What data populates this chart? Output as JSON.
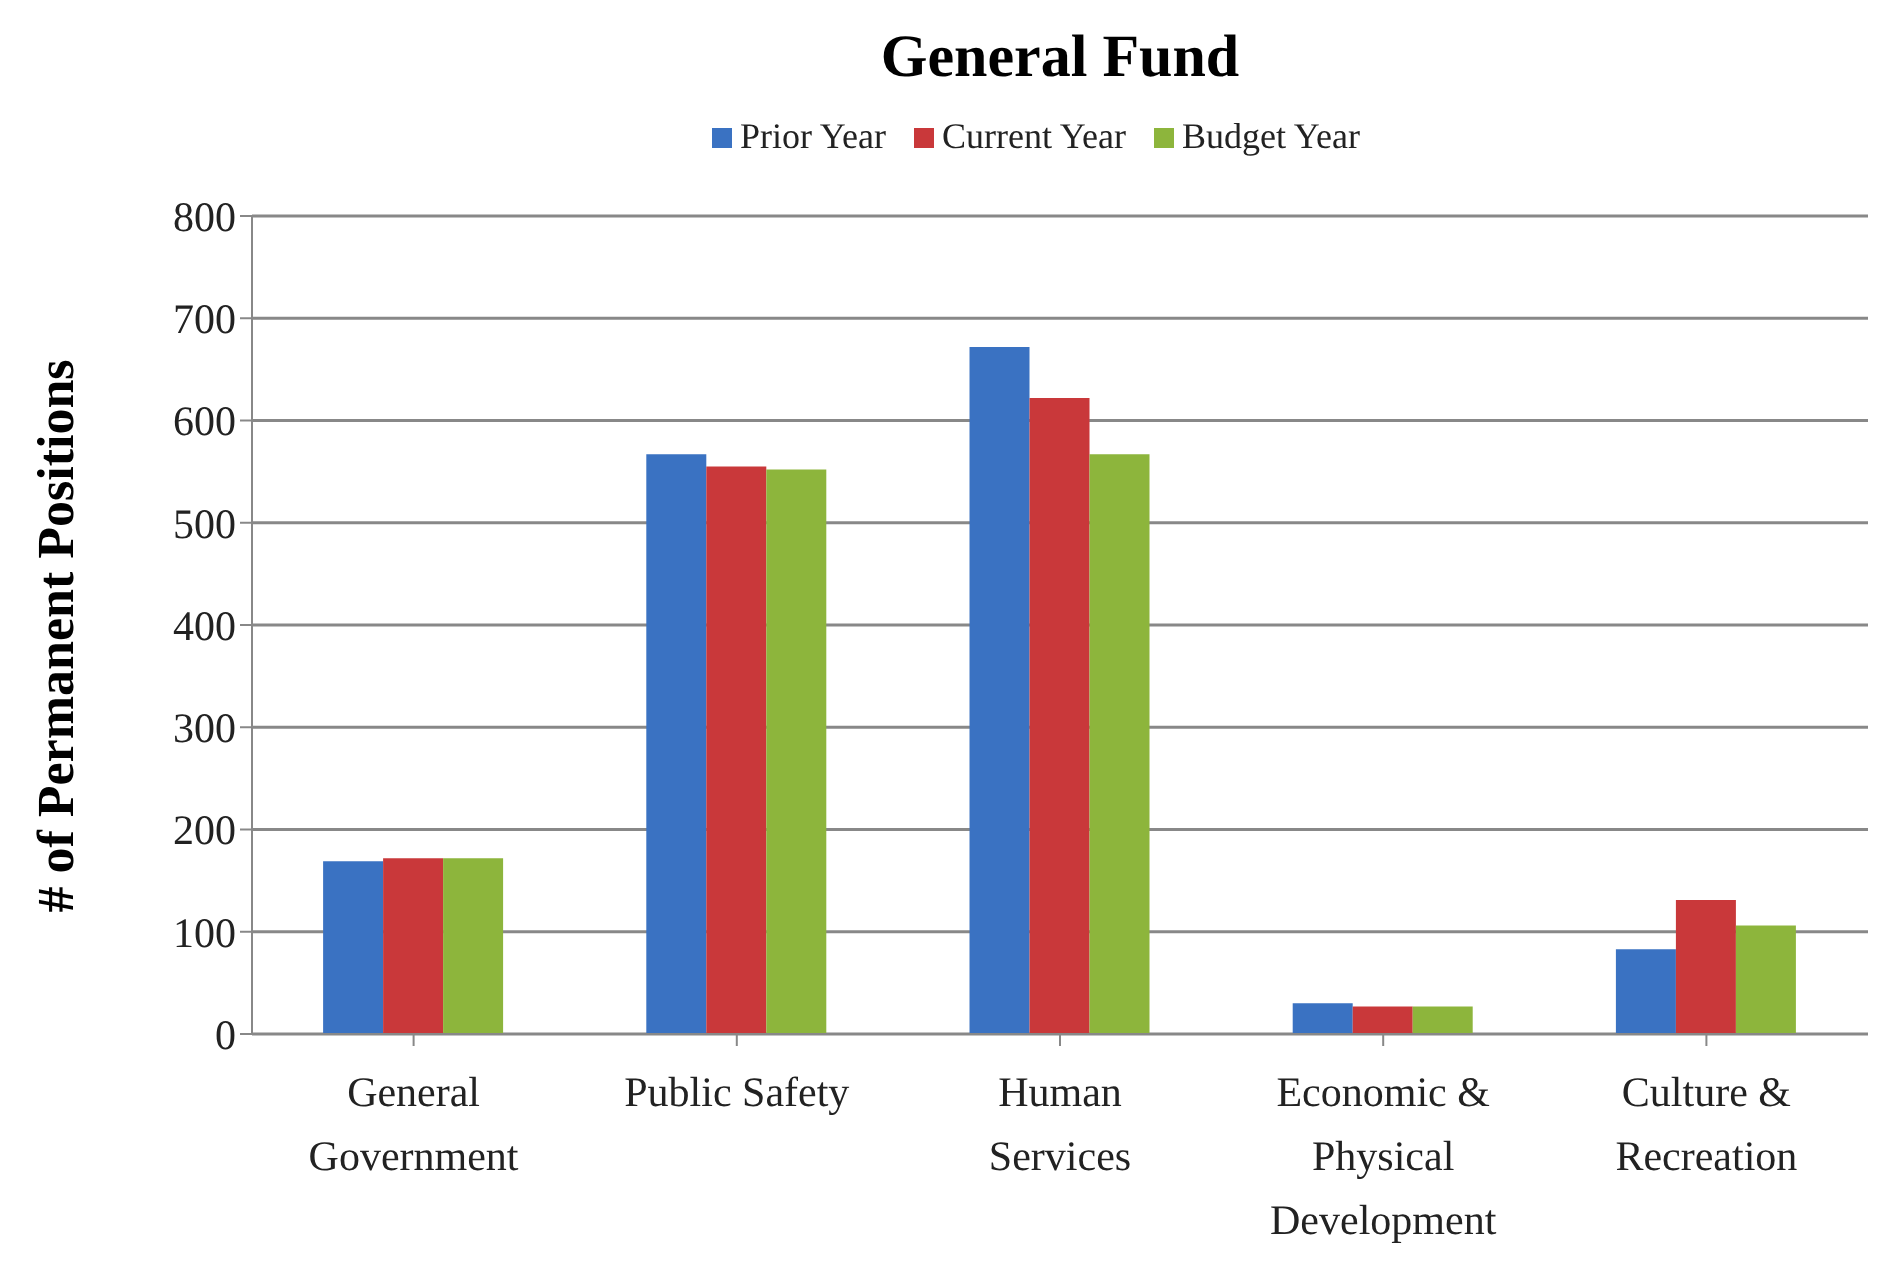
{
  "chart_data": {
    "type": "bar",
    "title": "General Fund",
    "ylabel": "# of Permanent Positions",
    "categories": [
      "General Government",
      "Public Safety",
      "Human Services",
      "Economic & Physical Development",
      "Culture & Recreation"
    ],
    "series": [
      {
        "name": "Prior Year",
        "color": "#3a72c2",
        "values": [
          169,
          567,
          672,
          30,
          83
        ]
      },
      {
        "name": "Current Year",
        "color": "#c9383a",
        "values": [
          172,
          555,
          622,
          27,
          131
        ]
      },
      {
        "name": "Budget Year",
        "color": "#8db53c",
        "values": [
          172,
          552,
          567,
          27,
          106
        ]
      }
    ],
    "ylim": [
      0,
      800
    ],
    "yticks": [
      0,
      100,
      200,
      300,
      400,
      500,
      600,
      700,
      800
    ],
    "grid": "y",
    "legend": "top"
  }
}
